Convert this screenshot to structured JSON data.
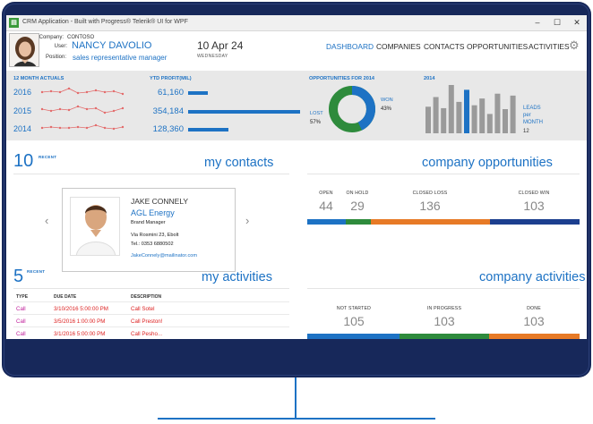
{
  "window": {
    "title": "CRM Application - Built with Progress® Telerik® UI for WPF",
    "icon": "app-icon",
    "minimize": "–",
    "maximize": "☐",
    "close": "✕"
  },
  "user": {
    "company_label": "Company:",
    "company": "CONTOSO",
    "user_label": "User:",
    "name": "NANCY DAVOLIO",
    "position_label": "Position:",
    "position": "sales representative manager"
  },
  "date": {
    "day": "10 Apr 24",
    "weekday": "WEDNESDAY"
  },
  "nav": [
    "DASHBOARD",
    "COMPANIES",
    "CONTACTS",
    "OPPORTUNITIES",
    "ACTIVITIES"
  ],
  "stats": {
    "actuals_title": "12 MONTH ACTUALS",
    "years": [
      "2016",
      "2015",
      "2014"
    ],
    "ytd_title": "YTD PROFIT(MIL)",
    "ytd": [
      {
        "value": "61,160",
        "amount": 61160
      },
      {
        "value": "354,184",
        "amount": 354184
      },
      {
        "value": "128,360",
        "amount": 128360
      }
    ],
    "opp_title": "OPPORTUNITIES FOR 2014",
    "won_label": "WON",
    "won_pct": "43%",
    "lost_label": "LOST",
    "lost_pct": "57%",
    "won_fraction": 0.43,
    "leads_title": "2014",
    "leads_label": [
      "LEADS",
      "per",
      "MONTH"
    ],
    "leads_value": "12",
    "leads_bars": [
      0.55,
      0.75,
      0.52,
      1.0,
      0.65,
      0.9,
      0.58,
      0.72,
      0.4,
      0.82,
      0.5,
      0.78
    ],
    "leads_highlight": 5
  },
  "contacts": {
    "count": "10",
    "recent": "RECENT",
    "title": "my contacts",
    "card": {
      "name": "JAKE CONNELY",
      "company": "AGL Energy",
      "role": "Brand Manager",
      "address": "Via Rosmini 23, Ebolt",
      "phone": "Tel.: 0353 6880502",
      "email": "JakeConnely@mailinator.com"
    },
    "prev": "‹",
    "next": "›"
  },
  "opportunities": {
    "title": "company opportunities",
    "stats": [
      {
        "label": "OPEN",
        "value": "44",
        "color": "#1d72c4"
      },
      {
        "label": "ON HOLD",
        "value": "29",
        "color": "#2e8b3c"
      },
      {
        "label": "CLOSED LOSS",
        "value": "136",
        "color": "#e77a26"
      },
      {
        "label": "CLOSED WIN",
        "value": "103",
        "color": "#1c3f8f"
      }
    ]
  },
  "activities": {
    "count": "5",
    "recent": "RECENT",
    "title": "my activities",
    "headers": [
      "TYPE",
      "DUE DATE",
      "DESCRIPTION"
    ],
    "rows": [
      {
        "type": "Call",
        "due": "3/10/2016 5:00:00 PM",
        "desc": "Call Sotel"
      },
      {
        "type": "Call",
        "due": "3/5/2016 1:00:00 PM",
        "desc": "Call Preston!"
      },
      {
        "type": "Call",
        "due": "3/1/2016 5:00:00 PM",
        "desc": "Call Pesho..."
      }
    ]
  },
  "company_activities": {
    "title": "company activities",
    "stats": [
      {
        "label": "NOT STARTED",
        "value": "105",
        "color": "#1d72c4"
      },
      {
        "label": "IN PROGRESS",
        "value": "103",
        "color": "#2e8b3c"
      },
      {
        "label": "DONE",
        "value": "103",
        "color": "#e77a26"
      }
    ]
  }
}
